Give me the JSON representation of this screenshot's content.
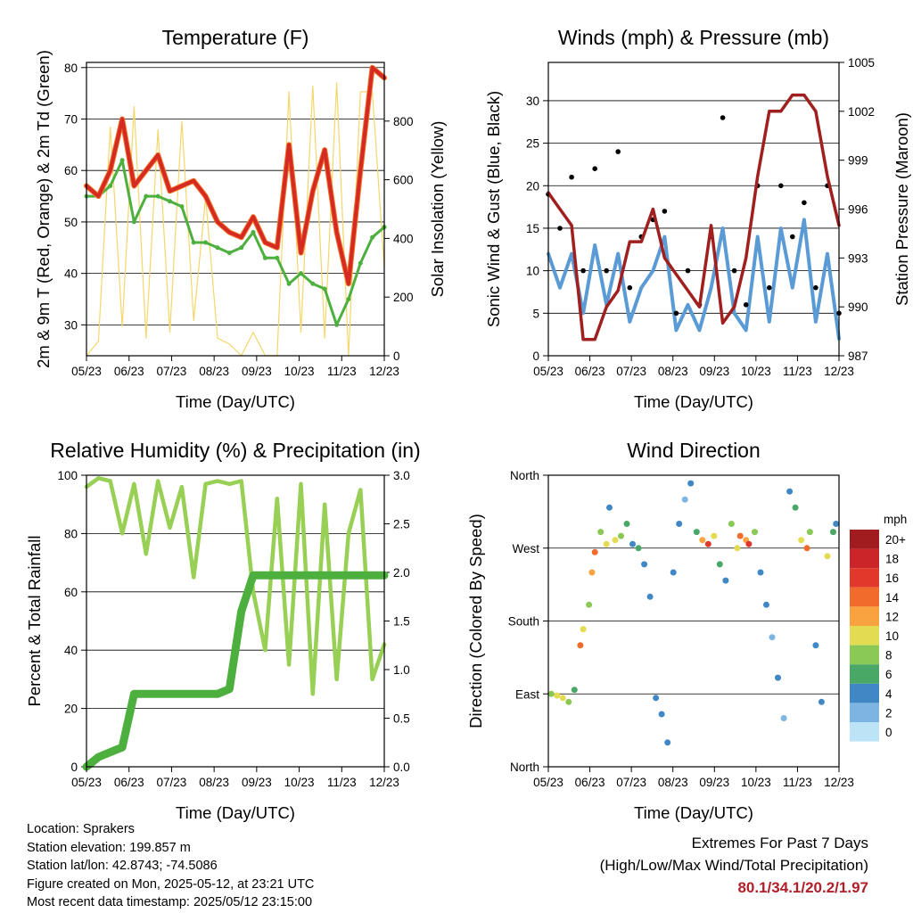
{
  "time_ticks": [
    "05/23",
    "06/23",
    "07/23",
    "08/23",
    "09/23",
    "10/23",
    "11/23",
    "12/23"
  ],
  "info": {
    "location": "Location: Sprakers",
    "elevation": "Station elevation: 199.857 m",
    "latlon": "Station lat/lon: 42.8743; -74.5086",
    "created": "Figure created on Mon, 2025-05-12, at 23:21 UTC",
    "recent": "Most recent data timestamp: 2025/05/12 23:15:00"
  },
  "extremes": {
    "title": "Extremes For Past 7 Days",
    "subtitle": "(High/Low/Max Wind/Total Precipitation)",
    "values": "80.1/34.1/20.2/1.97"
  },
  "colors": {
    "temp_red": "#d42a22",
    "temp_orange": "#f0742a",
    "dewpoint_green": "#4caf3e",
    "solar_yellow": "#f5d66a",
    "wind_blue": "#5b9bd5",
    "gust_black": "#000000",
    "pressure_maroon": "#a01f1f",
    "rh_lightgreen": "#98cf55",
    "precip_green": "#4caf3e"
  },
  "chart_data": [
    {
      "type": "line",
      "title": "Temperature (F)",
      "xlabel": "Time (Day/UTC)",
      "ylabel": "2m & 9m T (Red, Orange) & 2m Td (Green)",
      "y2label": "Solar Insolation (Yellow)",
      "ylim": [
        24,
        81
      ],
      "y2lim": [
        0,
        1000
      ],
      "yticks": [
        "30",
        "40",
        "50",
        "60",
        "70",
        "80"
      ],
      "y2ticks": [
        "0",
        "200",
        "400",
        "600",
        "800"
      ],
      "x": [
        0,
        4,
        8,
        12,
        16,
        20,
        24,
        28,
        32,
        36,
        40,
        44,
        48,
        52,
        56,
        60,
        64,
        68,
        72,
        76,
        80,
        84,
        88,
        92,
        96,
        100
      ],
      "series": [
        {
          "name": "2m T",
          "values": [
            57,
            55,
            60,
            70,
            57,
            60,
            63,
            56,
            57,
            58,
            55,
            50,
            48,
            47,
            51,
            46,
            45,
            65,
            44,
            56,
            64,
            48,
            38,
            60,
            80,
            78
          ]
        },
        {
          "name": "2m Td",
          "values": [
            55,
            55,
            57,
            62,
            50,
            55,
            55,
            54,
            53,
            46,
            46,
            45,
            44,
            45,
            48,
            43,
            43,
            38,
            40,
            38,
            37,
            30,
            35,
            42,
            47,
            49
          ]
        },
        {
          "name": "Solar",
          "values": [
            0,
            50,
            780,
            100,
            850,
            60,
            770,
            80,
            800,
            120,
            540,
            60,
            40,
            0,
            80,
            0,
            0,
            900,
            80,
            920,
            60,
            930,
            0,
            900,
            900,
            300
          ]
        }
      ]
    },
    {
      "type": "line",
      "title": "Winds (mph) & Pressure (mb)",
      "xlabel": "Time (Day/UTC)",
      "ylabel": "Sonic Wind & Gust (Blue, Black)",
      "y2label": "Station Pressure (Maroon)",
      "ylim": [
        0,
        34.5
      ],
      "y2lim": [
        987,
        1005
      ],
      "yticks": [
        "0",
        "5",
        "10",
        "15",
        "20",
        "25",
        "30"
      ],
      "y2ticks": [
        "987",
        "990",
        "993",
        "996",
        "999",
        "1002",
        "1005"
      ],
      "x": [
        0,
        4,
        8,
        12,
        16,
        20,
        24,
        28,
        32,
        36,
        40,
        44,
        48,
        52,
        56,
        60,
        64,
        68,
        72,
        76,
        80,
        84,
        88,
        92,
        96,
        100
      ],
      "series": [
        {
          "name": "Wind",
          "values": [
            12,
            8,
            12,
            5,
            13,
            6,
            12,
            4,
            8,
            10,
            14,
            3,
            6,
            3,
            8,
            15,
            5,
            3,
            14,
            4,
            15,
            8,
            16,
            4,
            12,
            2
          ]
        },
        {
          "name": "Gust",
          "values": [
            19,
            15,
            21,
            10,
            22,
            10,
            24,
            8,
            14,
            16,
            17,
            5,
            10,
            6,
            14,
            28,
            10,
            6,
            20,
            8,
            20,
            14,
            18,
            8,
            20,
            5
          ]
        },
        {
          "name": "Pressure",
          "values": [
            997,
            996,
            995,
            988,
            988,
            990,
            991,
            994,
            994,
            996,
            993,
            992,
            991,
            990,
            995,
            989,
            990,
            993,
            998,
            1002,
            1002,
            1003,
            1003,
            1002,
            998,
            995
          ]
        }
      ]
    },
    {
      "type": "line",
      "title": "Relative Humidity (%) & Precipitation (in)",
      "xlabel": "Time (Day/UTC)",
      "ylabel": "Percent & Total Rainfall",
      "ylim": [
        0,
        100
      ],
      "y2lim": [
        0,
        3.0
      ],
      "yticks": [
        "0",
        "20",
        "40",
        "60",
        "80",
        "100"
      ],
      "y2ticks": [
        "0.0",
        "0.5",
        "1.0",
        "1.5",
        "2.0",
        "2.5",
        "3.0"
      ],
      "x": [
        0,
        4,
        8,
        12,
        16,
        20,
        24,
        28,
        32,
        36,
        40,
        44,
        48,
        52,
        56,
        60,
        64,
        68,
        72,
        76,
        80,
        84,
        88,
        92,
        96,
        100
      ],
      "series": [
        {
          "name": "RH",
          "values": [
            96,
            99,
            98,
            80,
            97,
            73,
            98,
            82,
            96,
            65,
            97,
            98,
            97,
            98,
            60,
            40,
            92,
            35,
            97,
            25,
            90,
            30,
            80,
            95,
            30,
            42
          ]
        },
        {
          "name": "Precip",
          "values": [
            0,
            0.1,
            0.15,
            0.2,
            0.75,
            0.75,
            0.75,
            0.75,
            0.75,
            0.75,
            0.75,
            0.75,
            0.8,
            1.6,
            1.97,
            1.97,
            1.97,
            1.97,
            1.97,
            1.97,
            1.97,
            1.97,
            1.97,
            1.97,
            1.97,
            1.97
          ]
        }
      ]
    },
    {
      "type": "scatter",
      "title": "Wind Direction",
      "xlabel": "Time (Day/UTC)",
      "ylabel": "Direction (Colored By Speed)",
      "yticks": [
        "North",
        "East",
        "South",
        "West",
        "North"
      ],
      "ylim": [
        0,
        360
      ],
      "legend_title": "mph",
      "legend_labels": [
        "20+",
        "18",
        "16",
        "14",
        "12",
        "10",
        "8",
        "6",
        "4",
        "2",
        "0"
      ],
      "legend_colors": [
        "#a01c1e",
        "#cc2529",
        "#e1382c",
        "#f06b2c",
        "#f9a340",
        "#e3dc52",
        "#8ac955",
        "#4aa867",
        "#3f87c5",
        "#7cb4e2",
        "#bde3f6"
      ],
      "points": [
        [
          1,
          90,
          8
        ],
        [
          3,
          88,
          9
        ],
        [
          5,
          85,
          10
        ],
        [
          7,
          80,
          8
        ],
        [
          9,
          95,
          6
        ],
        [
          11,
          150,
          13
        ],
        [
          12,
          170,
          9
        ],
        [
          14,
          200,
          7
        ],
        [
          15,
          240,
          11
        ],
        [
          16,
          265,
          14
        ],
        [
          18,
          290,
          8
        ],
        [
          20,
          275,
          10
        ],
        [
          21,
          320,
          4
        ],
        [
          23,
          280,
          9
        ],
        [
          25,
          285,
          7
        ],
        [
          27,
          300,
          5
        ],
        [
          29,
          275,
          3
        ],
        [
          31,
          270,
          6
        ],
        [
          33,
          250,
          3
        ],
        [
          35,
          210,
          3
        ],
        [
          37,
          85,
          3
        ],
        [
          39,
          65,
          4
        ],
        [
          41,
          30,
          3
        ],
        [
          43,
          240,
          3
        ],
        [
          45,
          300,
          3
        ],
        [
          47,
          330,
          2
        ],
        [
          49,
          350,
          3
        ],
        [
          51,
          290,
          5
        ],
        [
          53,
          280,
          12
        ],
        [
          55,
          275,
          15
        ],
        [
          57,
          285,
          9
        ],
        [
          59,
          250,
          5
        ],
        [
          61,
          230,
          3
        ],
        [
          63,
          300,
          7
        ],
        [
          65,
          270,
          10
        ],
        [
          66,
          285,
          14
        ],
        [
          68,
          280,
          12
        ],
        [
          69,
          275,
          16
        ],
        [
          71,
          290,
          8
        ],
        [
          73,
          240,
          4
        ],
        [
          75,
          200,
          3
        ],
        [
          77,
          160,
          2
        ],
        [
          79,
          110,
          3
        ],
        [
          81,
          60,
          2
        ],
        [
          83,
          340,
          3
        ],
        [
          85,
          320,
          6
        ],
        [
          87,
          280,
          9
        ],
        [
          89,
          270,
          13
        ],
        [
          90,
          290,
          7
        ],
        [
          92,
          150,
          3
        ],
        [
          94,
          80,
          4
        ],
        [
          96,
          260,
          10
        ],
        [
          98,
          290,
          6
        ],
        [
          99,
          300,
          4
        ]
      ]
    }
  ]
}
